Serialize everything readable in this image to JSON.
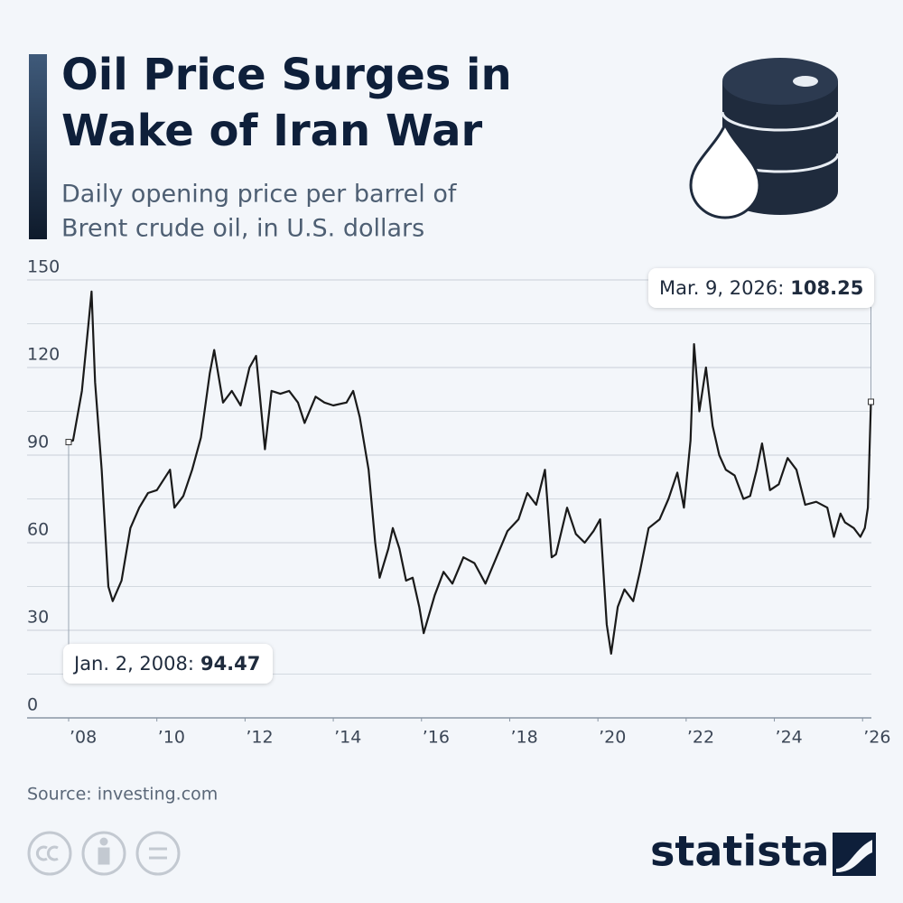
{
  "chart_data": {
    "type": "line",
    "title": [
      "Oil Price Surges in",
      "Wake of Iran War"
    ],
    "subtitle": [
      "Daily opening price per barrel of",
      "Brent crude oil, in U.S. dollars"
    ],
    "source": "Source: investing.com",
    "brand": "statista",
    "color": "#1a1a1a",
    "annotations": [
      "Jan. 2, 2008:",
      "Mar. 9, 2026:"
    ],
    "x": [
      2008.0,
      2008.1,
      2008.3,
      2008.45,
      2008.52,
      2008.6,
      2008.75,
      2008.9,
      2009.0,
      2009.2,
      2009.4,
      2009.6,
      2009.8,
      2010.0,
      2010.3,
      2010.4,
      2010.6,
      2010.8,
      2011.0,
      2011.2,
      2011.3,
      2011.5,
      2011.7,
      2011.9,
      2012.1,
      2012.25,
      2012.45,
      2012.6,
      2012.8,
      2013.0,
      2013.2,
      2013.35,
      2013.6,
      2013.8,
      2014.0,
      2014.3,
      2014.45,
      2014.6,
      2014.8,
      2014.95,
      2015.05,
      2015.25,
      2015.35,
      2015.5,
      2015.65,
      2015.8,
      2015.95,
      2016.05,
      2016.3,
      2016.5,
      2016.7,
      2016.95,
      2017.2,
      2017.45,
      2017.7,
      2017.95,
      2018.2,
      2018.4,
      2018.6,
      2018.8,
      2018.95,
      2019.05,
      2019.3,
      2019.5,
      2019.7,
      2019.9,
      2020.05,
      2020.2,
      2020.3,
      2020.45,
      2020.6,
      2020.8,
      2020.95,
      2021.15,
      2021.4,
      2021.6,
      2021.8,
      2021.95,
      2022.1,
      2022.18,
      2022.3,
      2022.45,
      2022.6,
      2022.75,
      2022.9,
      2023.1,
      2023.3,
      2023.45,
      2023.6,
      2023.72,
      2023.9,
      2024.1,
      2024.3,
      2024.5,
      2024.7,
      2024.95,
      2025.2,
      2025.35,
      2025.5,
      2025.6,
      2025.8,
      2025.95,
      2026.05,
      2026.12,
      2026.19
    ],
    "values": [
      94.47,
      95,
      112,
      135,
      146,
      115,
      85,
      45,
      40,
      47,
      65,
      72,
      77,
      78,
      85,
      72,
      76,
      85,
      96,
      118,
      126,
      108,
      112,
      107,
      120,
      124,
      92,
      112,
      111,
      112,
      108,
      101,
      110,
      108,
      107,
      108,
      112,
      103,
      85,
      60,
      48,
      58,
      65,
      58,
      47,
      48,
      38,
      29,
      42,
      50,
      46,
      55,
      53,
      46,
      55,
      64,
      68,
      77,
      73,
      85,
      55,
      56,
      72,
      63,
      60,
      64,
      68,
      32,
      22,
      38,
      44,
      40,
      50,
      65,
      68,
      75,
      84,
      72,
      95,
      128,
      105,
      120,
      100,
      90,
      85,
      83,
      75,
      76,
      85,
      94,
      78,
      80,
      89,
      85,
      73,
      74,
      72,
      62,
      70,
      67,
      65,
      62,
      65,
      72,
      108.25
    ],
    "xlim": [
      2008,
      2026.2
    ],
    "xticks": [
      {
        "value": 2008,
        "label": "’08"
      },
      {
        "value": 2010,
        "label": "’10"
      },
      {
        "value": 2012,
        "label": "’12"
      },
      {
        "value": 2014,
        "label": "’14"
      },
      {
        "value": 2016,
        "label": "’16"
      },
      {
        "value": 2018,
        "label": "’18"
      },
      {
        "value": 2020,
        "label": "’20"
      },
      {
        "value": 2022,
        "label": "’22"
      },
      {
        "value": 2024,
        "label": "’24"
      },
      {
        "value": 2026,
        "label": "’26"
      }
    ],
    "ylim": [
      0,
      150
    ],
    "yticks": [
      0,
      30,
      60,
      90,
      120,
      150
    ],
    "minor_yticks": [
      15,
      45,
      75,
      105,
      135
    ],
    "grid": true
  }
}
